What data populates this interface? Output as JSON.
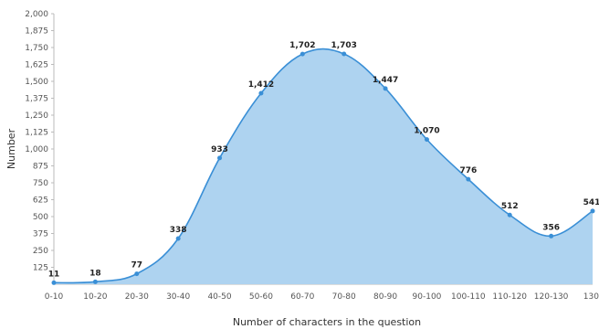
{
  "chart_data": {
    "type": "area",
    "categories": [
      "0-10",
      "10-20",
      "20-30",
      "30-40",
      "40-50",
      "50-60",
      "60-70",
      "70-80",
      "80-90",
      "90-100",
      "100-110",
      "110-120",
      "120-130",
      "130-"
    ],
    "series": [
      {
        "values": [
          11,
          18,
          77,
          338,
          933,
          1412,
          1702,
          1703,
          1447,
          1070,
          776,
          512,
          356,
          541
        ]
      }
    ],
    "data_labels": [
      "11",
      "18",
      "77",
      "338",
      "933",
      "1,412",
      "1,702",
      "1,703",
      "1,447",
      "1,070",
      "776",
      "512",
      "356",
      "541"
    ],
    "x_tick_labels": [
      "0-10",
      "10-20",
      "20-30",
      "30-40",
      "40-50",
      "50-60",
      "60-70",
      "70-80",
      "80-90",
      "90-100",
      "100-110",
      "110-120",
      "120-130",
      "130-"
    ],
    "y_ticks": [
      125,
      250,
      375,
      500,
      625,
      750,
      875,
      1000,
      1125,
      1250,
      1375,
      1500,
      1625,
      1750,
      1875,
      2000
    ],
    "y_tick_labels": [
      "125",
      "250",
      "375",
      "500",
      "625",
      "750",
      "875",
      "1,000",
      "1,125",
      "1,250",
      "1,375",
      "1,500",
      "1,625",
      "1,750",
      "1,875",
      "2,000"
    ],
    "ylim": [
      0,
      2000
    ],
    "xlabel": "Number of characters in the question",
    "ylabel": "Number",
    "grid": false,
    "legend": "none",
    "colors": {
      "line": "#3a8fd6",
      "fill": "#aed3f0",
      "point": "#3a8fd6"
    }
  }
}
